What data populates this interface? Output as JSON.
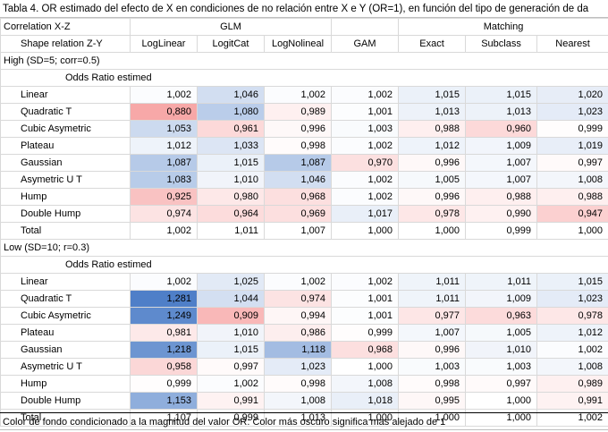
{
  "caption": "Tabla 4. OR estimado del efecto de X en condiciones de no relación entre X e Y (OR=1), en función del tipo de generación de da",
  "header": {
    "row1_label": "Correlation X-Z",
    "row2_label": "Shape relation Z-Y",
    "group_glm": "GLM",
    "group_matching": "Matching",
    "columns": [
      "LogLinear",
      "LogitCat",
      "LogNolineal",
      "GAM",
      "Exact",
      "Subclass",
      "Nearest"
    ]
  },
  "sections": [
    {
      "title": "High (SD=5; corr=0.5)",
      "subtitle": "Odds Ratio estimed",
      "rows": [
        {
          "label": "Linear",
          "values": [
            "1,002",
            "1,046",
            "1,002",
            "1,002",
            "1,015",
            "1,015",
            "1,020"
          ]
        },
        {
          "label": "Quadratic T",
          "values": [
            "0,880",
            "1,080",
            "0,989",
            "1,001",
            "1,013",
            "1,013",
            "1,023"
          ]
        },
        {
          "label": "Cubic Asymetric",
          "values": [
            "1,053",
            "0,961",
            "0,996",
            "1,003",
            "0,988",
            "0,960",
            "0,999"
          ]
        },
        {
          "label": "Plateau",
          "values": [
            "1,012",
            "1,033",
            "0,998",
            "1,002",
            "1,012",
            "1,009",
            "1,019"
          ]
        },
        {
          "label": "Gaussian",
          "values": [
            "1,087",
            "1,015",
            "1,087",
            "0,970",
            "0,996",
            "1,007",
            "0,997"
          ]
        },
        {
          "label": "Asymetric U T",
          "values": [
            "1,083",
            "1,010",
            "1,046",
            "1,002",
            "1,005",
            "1,007",
            "1,008"
          ]
        },
        {
          "label": "Hump",
          "values": [
            "0,925",
            "0,980",
            "0,968",
            "1,002",
            "0,996",
            "0,988",
            "0,988"
          ]
        },
        {
          "label": "Double Hump",
          "values": [
            "0,974",
            "0,964",
            "0,969",
            "1,017",
            "0,978",
            "0,990",
            "0,947"
          ]
        }
      ],
      "total": {
        "label": "Total",
        "values": [
          "1,002",
          "1,011",
          "1,007",
          "1,000",
          "1,000",
          "0,999",
          "1,000"
        ]
      }
    },
    {
      "title": "Low (SD=10; r=0.3)",
      "subtitle": "Odds Ratio estimed",
      "rows": [
        {
          "label": "Linear",
          "values": [
            "1,002",
            "1,025",
            "1,002",
            "1,002",
            "1,011",
            "1,011",
            "1,015"
          ]
        },
        {
          "label": "Quadratic T",
          "values": [
            "1,281",
            "1,044",
            "0,974",
            "1,001",
            "1,011",
            "1,009",
            "1,023"
          ]
        },
        {
          "label": "Cubic Asymetric",
          "values": [
            "1,249",
            "0,909",
            "0,994",
            "1,001",
            "0,977",
            "0,963",
            "0,978"
          ]
        },
        {
          "label": "Plateau",
          "values": [
            "0,981",
            "1,010",
            "0,986",
            "0,999",
            "1,007",
            "1,005",
            "1,012"
          ]
        },
        {
          "label": "Gaussian",
          "values": [
            "1,218",
            "1,015",
            "1,118",
            "0,968",
            "0,996",
            "1,010",
            "1,002"
          ]
        },
        {
          "label": "Asymetric U T",
          "values": [
            "0,958",
            "0,997",
            "1,023",
            "1,000",
            "1,003",
            "1,003",
            "1,008"
          ]
        },
        {
          "label": "Hump",
          "values": [
            "0,999",
            "1,002",
            "0,998",
            "1,008",
            "0,998",
            "0,997",
            "0,989"
          ]
        },
        {
          "label": "Double Hump",
          "values": [
            "1,153",
            "0,991",
            "1,008",
            "1,018",
            "0,995",
            "1,000",
            "0,991"
          ]
        }
      ],
      "total": {
        "label": "Total",
        "values": [
          "1,107",
          "0,999",
          "1,013",
          "1,000",
          "1,000",
          "1,000",
          "1,002"
        ]
      }
    }
  ],
  "footer": "Color de fondo condicionado a la magnitud del valor OR: Color más oscuro significa mas alejado de 1",
  "colors": {
    "above_one": "#4f7fc8",
    "below_one": "#f05a5a",
    "gridline": "#d9d9d9"
  }
}
